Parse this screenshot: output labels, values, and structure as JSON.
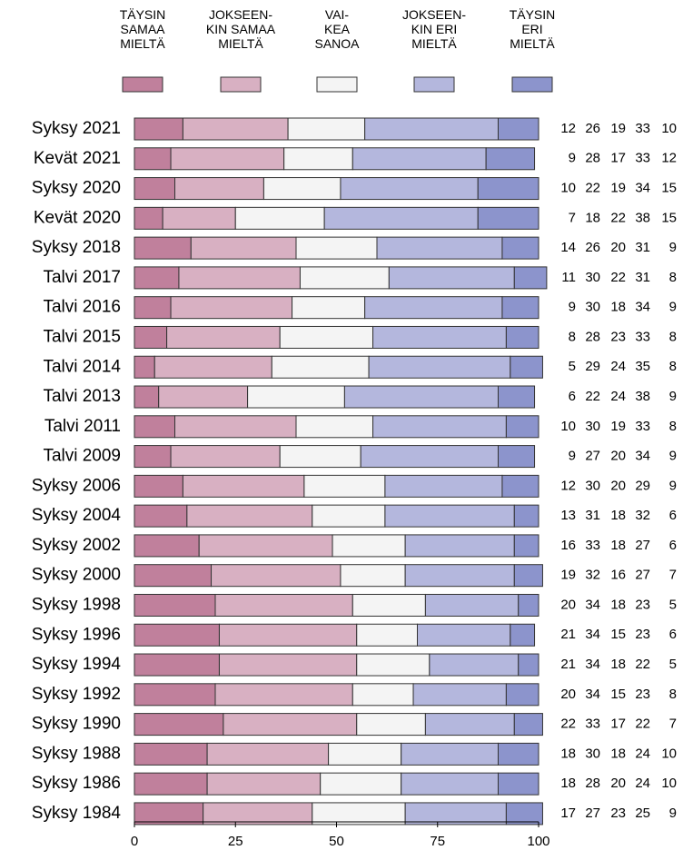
{
  "chart_data": {
    "type": "stacked-bar-horizontal",
    "categories": [
      "Syksy 2021",
      "Kevät 2021",
      "Syksy 2020",
      "Kevät 2020",
      "Syksy 2018",
      "Talvi 2017",
      "Talvi 2016",
      "Talvi 2015",
      "Talvi 2014",
      "Talvi 2013",
      "Talvi 2011",
      "Talvi 2009",
      "Syksy 2006",
      "Syksy 2004",
      "Syksy 2002",
      "Syksy 2000",
      "Syksy 1998",
      "Syksy 1996",
      "Syksy 1994",
      "Syksy 1992",
      "Syksy 1990",
      "Syksy 1988",
      "Syksy 1986",
      "Syksy 1984"
    ],
    "series": [
      {
        "name": "TÄYSIN\nSAMAA\nMIELTÄ",
        "color": "#c0809c",
        "values": [
          12,
          9,
          10,
          7,
          14,
          11,
          9,
          8,
          5,
          6,
          10,
          9,
          12,
          13,
          16,
          19,
          20,
          21,
          21,
          20,
          22,
          18,
          18,
          17
        ]
      },
      {
        "name": "JOKSEEN-\nKIN SAMAA\nMIELTÄ",
        "color": "#d8b0c2",
        "values": [
          26,
          28,
          22,
          18,
          26,
          30,
          30,
          28,
          29,
          22,
          30,
          27,
          30,
          31,
          33,
          32,
          34,
          34,
          34,
          34,
          33,
          30,
          28,
          27
        ]
      },
      {
        "name": "VAI-\nKEA\nSANOA",
        "color": "#f4f4f4",
        "values": [
          19,
          17,
          19,
          22,
          20,
          22,
          18,
          23,
          24,
          24,
          19,
          20,
          20,
          18,
          18,
          16,
          18,
          15,
          18,
          15,
          17,
          18,
          20,
          23
        ]
      },
      {
        "name": "JOKSEEN-\nKIN ERI\nMIELTÄ",
        "color": "#b4b7dd",
        "values": [
          33,
          33,
          34,
          38,
          31,
          31,
          34,
          33,
          35,
          38,
          33,
          34,
          29,
          32,
          27,
          27,
          23,
          23,
          22,
          23,
          22,
          24,
          24,
          25
        ]
      },
      {
        "name": "TÄYSIN\nERI\nMIELTÄ",
        "color": "#8c94cc",
        "values": [
          10,
          12,
          15,
          15,
          9,
          8,
          9,
          8,
          8,
          9,
          8,
          9,
          9,
          6,
          6,
          7,
          5,
          6,
          5,
          8,
          7,
          10,
          10,
          9
        ]
      }
    ],
    "xlim": [
      0,
      100
    ],
    "xticks": [
      0,
      25,
      50,
      75,
      100
    ]
  }
}
